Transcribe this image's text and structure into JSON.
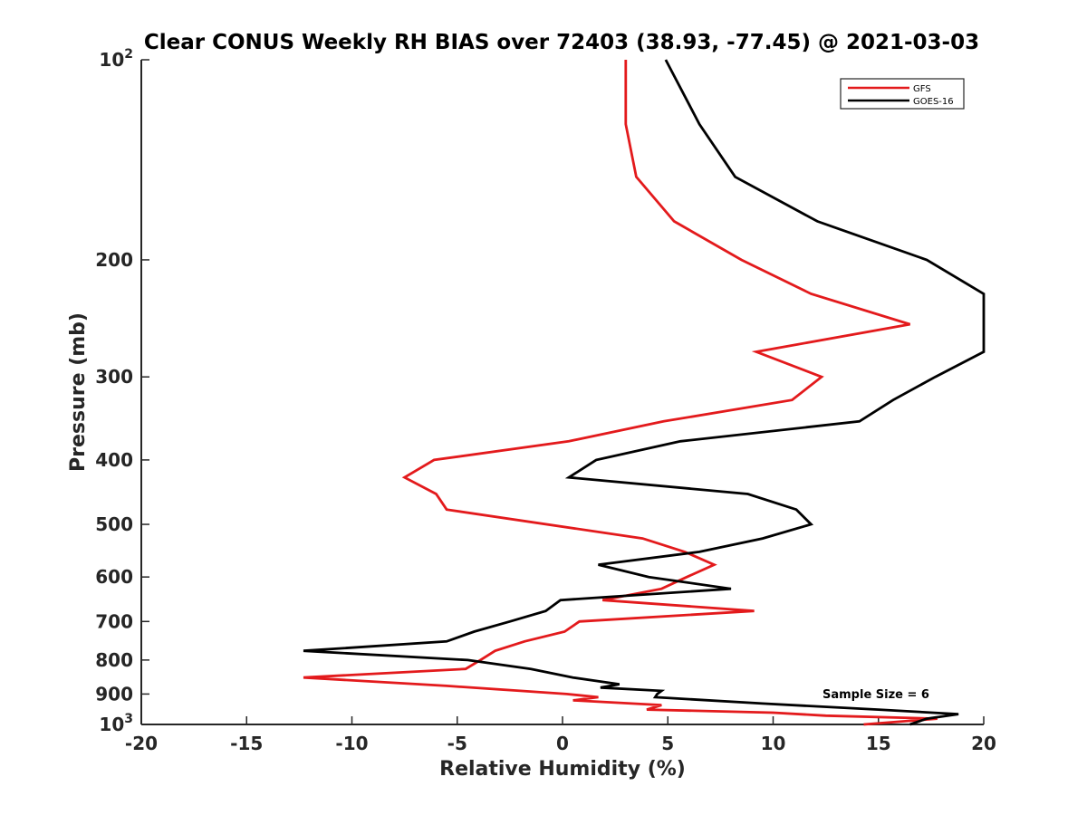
{
  "chart_data": {
    "type": "line",
    "title": "Clear CONUS Weekly RH BIAS over 72403 (38.93, -77.45) @ 2021-03-03",
    "xlabel": "Relative Humidity (%)",
    "ylabel": "Pressure (mb)",
    "xlim": [
      -20,
      20
    ],
    "ylim": [
      100,
      1000
    ],
    "y_scale": "log",
    "y_reversed": true,
    "x_ticks": [
      "-20",
      "-15",
      "-10",
      "-5",
      "0",
      "5",
      "10",
      "15",
      "20"
    ],
    "y_ticks": [
      {
        "value": 100,
        "base": "10",
        "exp": "2"
      },
      {
        "value": 200,
        "label": "200"
      },
      {
        "value": 300,
        "label": "300"
      },
      {
        "value": 400,
        "label": "400"
      },
      {
        "value": 500,
        "label": "500"
      },
      {
        "value": 600,
        "label": "600"
      },
      {
        "value": 700,
        "label": "700"
      },
      {
        "value": 800,
        "label": "800"
      },
      {
        "value": 900,
        "label": "900"
      },
      {
        "value": 1000,
        "base": "10",
        "exp": "3"
      }
    ],
    "grid": false,
    "legend_position": "top-right",
    "annotation": "Sample Size = 6",
    "series": [
      {
        "name": "GFS",
        "color": "#e31a1c",
        "points": [
          [
            3.0,
            100
          ],
          [
            3.0,
            125
          ],
          [
            3.5,
            150
          ],
          [
            5.3,
            175
          ],
          [
            8.5,
            200
          ],
          [
            11.8,
            225
          ],
          [
            16.5,
            250
          ],
          [
            9.2,
            275
          ],
          [
            12.3,
            300
          ],
          [
            10.9,
            325
          ],
          [
            4.8,
            350
          ],
          [
            0.3,
            375
          ],
          [
            -6.1,
            400
          ],
          [
            -7.5,
            425
          ],
          [
            -6.0,
            450
          ],
          [
            -5.5,
            475
          ],
          [
            3.8,
            525
          ],
          [
            5.8,
            550
          ],
          [
            7.2,
            575
          ],
          [
            5.9,
            600
          ],
          [
            4.7,
            625
          ],
          [
            1.9,
            650
          ],
          [
            9.1,
            675
          ],
          [
            0.8,
            700
          ],
          [
            0.1,
            725
          ],
          [
            -1.8,
            750
          ],
          [
            -3.2,
            775
          ],
          [
            -3.9,
            800
          ],
          [
            -4.6,
            825
          ],
          [
            -12.3,
            850
          ],
          [
            -5.5,
            875
          ],
          [
            -2.0,
            890
          ],
          [
            0.2,
            900
          ],
          [
            1.7,
            910
          ],
          [
            0.5,
            920
          ],
          [
            4.7,
            935
          ],
          [
            4.0,
            950
          ],
          [
            10.0,
            960
          ],
          [
            12.5,
            970
          ],
          [
            17.8,
            980
          ],
          [
            14.3,
            1000
          ]
        ]
      },
      {
        "name": "GOES-16",
        "color": "#000000",
        "points": [
          [
            4.9,
            100
          ],
          [
            6.5,
            125
          ],
          [
            8.2,
            150
          ],
          [
            12.1,
            175
          ],
          [
            17.3,
            200
          ],
          [
            20.0,
            225
          ],
          [
            20.0,
            275
          ],
          [
            17.7,
            300
          ],
          [
            15.7,
            325
          ],
          [
            14.1,
            350
          ],
          [
            5.6,
            375
          ],
          [
            1.6,
            400
          ],
          [
            0.3,
            425
          ],
          [
            8.8,
            450
          ],
          [
            11.1,
            475
          ],
          [
            11.8,
            500
          ],
          [
            9.5,
            525
          ],
          [
            6.5,
            550
          ],
          [
            1.7,
            575
          ],
          [
            4.1,
            600
          ],
          [
            8.0,
            625
          ],
          [
            -0.1,
            650
          ],
          [
            -0.8,
            675
          ],
          [
            -2.5,
            700
          ],
          [
            -4.2,
            725
          ],
          [
            -5.5,
            750
          ],
          [
            -12.3,
            775
          ],
          [
            -4.5,
            800
          ],
          [
            -1.5,
            825
          ],
          [
            0.5,
            850
          ],
          [
            2.7,
            870
          ],
          [
            1.8,
            880
          ],
          [
            4.7,
            890
          ],
          [
            4.5,
            900
          ],
          [
            4.4,
            910
          ],
          [
            9.5,
            930
          ],
          [
            15.0,
            950
          ],
          [
            18.8,
            965
          ],
          [
            17.3,
            980
          ],
          [
            16.5,
            1000
          ]
        ]
      }
    ]
  }
}
